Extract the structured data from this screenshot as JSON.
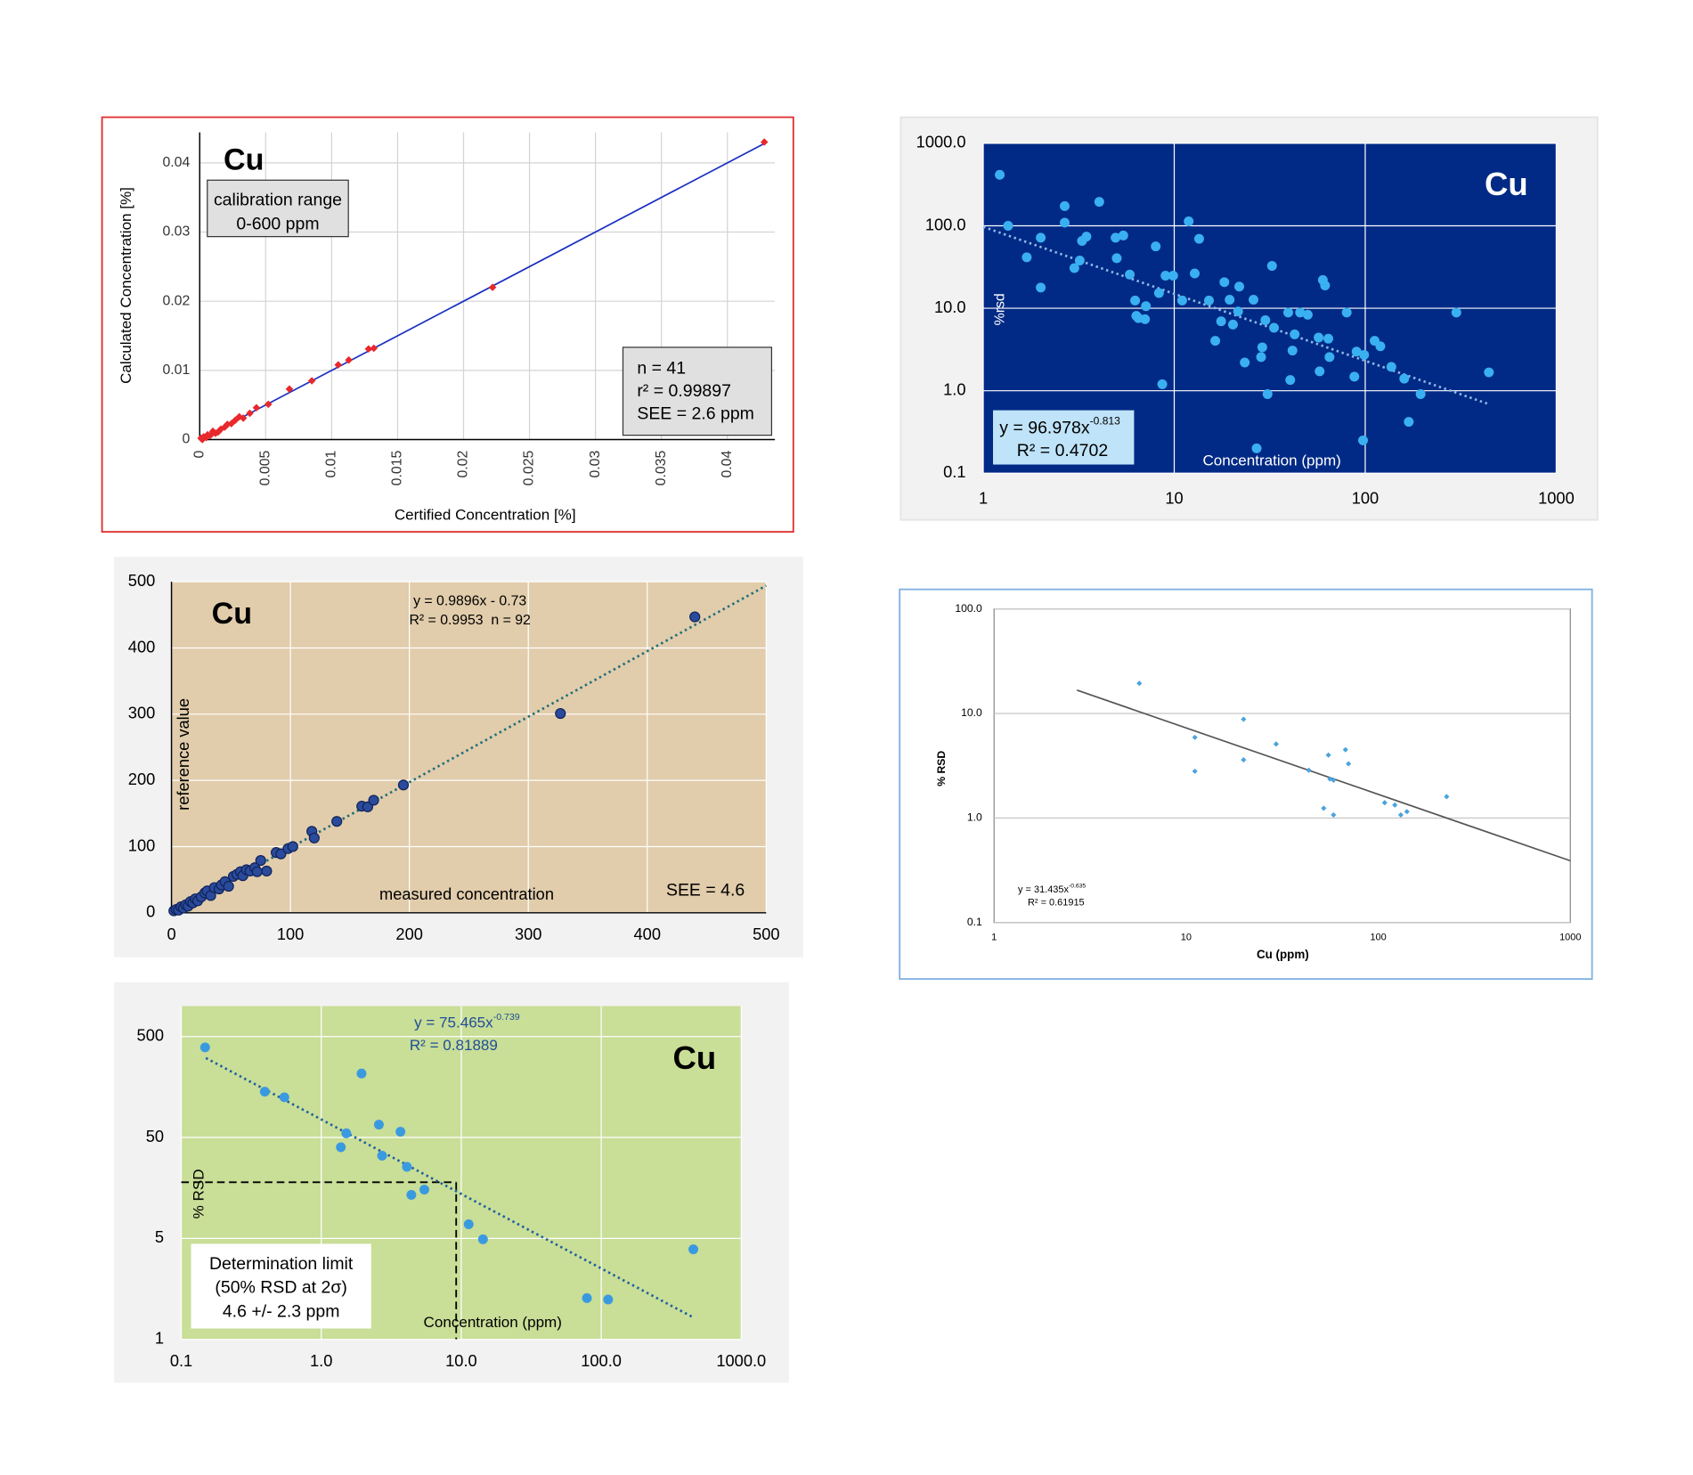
{
  "chart_data": [
    {
      "type": "scatter",
      "title": "Cu",
      "range_box": [
        "calibration range",
        "0-600 ppm"
      ],
      "stats_box": [
        "n = 41",
        "r² = 0.99897",
        "SEE = 2.6 ppm"
      ],
      "xlabel": "Certified Concentration [%]",
      "ylabel": "Calculated Concentration [%]",
      "xlim": [
        0,
        0.0436
      ],
      "ylim": [
        0,
        0.0444
      ],
      "xticks": [
        0,
        0.005,
        0.01,
        0.015,
        0.02,
        0.025,
        0.03,
        0.035,
        0.04
      ],
      "yticks": [
        0,
        0.01,
        0.02,
        0.03,
        0.04
      ],
      "grid": "both",
      "background": "#ffffff",
      "series": [
        {
          "color": "#1a2fc0",
          "line": "solid",
          "x": [
            0,
            0.0428
          ],
          "y": [
            0,
            0.0428
          ]
        },
        {
          "color": "#e8282b",
          "marker": "diamond",
          "x": [
            0.0001,
            0.0002,
            0.0003,
            0.0005,
            0.0006,
            0.0008,
            0.001,
            0.0012,
            0.0014,
            0.0016,
            0.0019,
            0.0021,
            0.0024,
            0.0027,
            0.003,
            0.0033,
            0.0038,
            0.0043,
            0.0052,
            0.0068,
            0.0085,
            0.0105,
            0.0113,
            0.0128,
            0.0132,
            0.0222,
            0.0428
          ],
          "y": [
            0.0002,
            0,
            0.0004,
            0.0003,
            0.0007,
            0.0006,
            0.0012,
            0.0009,
            0.0011,
            0.0015,
            0.0018,
            0.0022,
            0.0023,
            0.0028,
            0.0033,
            0.0031,
            0.0038,
            0.0046,
            0.0051,
            0.0073,
            0.0085,
            0.0108,
            0.0115,
            0.0131,
            0.0132,
            0.022,
            0.043
          ]
        }
      ]
    },
    {
      "type": "scatter",
      "title": "Cu",
      "xlabel": "Concentration (ppm)",
      "ylabel": "%rsd",
      "equation": {
        "text": "y = 96.978x",
        "exponent": "-0.813"
      },
      "r2": "R² = 0.4702",
      "xscale": "log",
      "yscale": "log",
      "xlim": [
        1,
        1000
      ],
      "ylim": [
        0.1,
        1000
      ],
      "xticks": [
        1,
        10,
        100,
        1000
      ],
      "yticks": [
        0.1,
        {
          "value": 1,
          "label": "1.0"
        },
        {
          "value": 10,
          "label": "10.0"
        },
        {
          "value": 100,
          "label": "100.0"
        },
        {
          "value": 1000,
          "label": "1000.0"
        }
      ],
      "grid": "both",
      "background": "#002a85",
      "series": [
        {
          "color": "#8fb8ea",
          "line": "dotted",
          "x": [
            1,
            450
          ],
          "y": [
            97,
            0.68
          ]
        },
        {
          "color": "#3ab0f0",
          "marker": "circle",
          "x": [
            1.22,
            1.35,
            1.69,
            2.0,
            2.0,
            2.67,
            2.67,
            3.0,
            3.2,
            3.29,
            3.47,
            4.05,
            4.93,
            5.0,
            5.41,
            5.85,
            6.24,
            6.33,
            6.49,
            7.03,
            7.11,
            8.0,
            8.32,
            8.66,
            9.0,
            9.87,
            11.9,
            11.0,
            12.8,
            13.5,
            15.2,
            16.4,
            17.6,
            18.3,
            19.5,
            20.3,
            21.6,
            21.9,
            23.4,
            26.0,
            28.5,
            28.9,
            30.0,
            30.8,
            32.5,
            33.3,
            39.5,
            40.5,
            41.6,
            42.7,
            45.6,
            50.0,
            57.0,
            57.7,
            60.0,
            61.6,
            64.1,
            65.0,
            80.0,
            87.7,
            90.1,
            98.7,
            112,
            120,
            137,
            160,
            169,
            195,
            300,
            444,
            27.0,
            97.4
          ],
          "y": [
            415,
            100,
            41.5,
            17.8,
            71.6,
            173,
            109,
            30.7,
            37.9,
            65.5,
            73.9,
            195,
            71.6,
            40.4,
            76.2,
            25.6,
            12.4,
            8.09,
            7.6,
            7.37,
            10.6,
            56.2,
            15.3,
            1.2,
            24.8,
            24.8,
            113,
            12.4,
            26.4,
            69.5,
            12.4,
            4.03,
            6.95,
            20.7,
            12.7,
            6.35,
            9.14,
            18.3,
            2.2,
            12.7,
            2.56,
            3.36,
            7.17,
            0.91,
            32.6,
            5.8,
            8.86,
            1.35,
            3.07,
            4.83,
            8.86,
            8.34,
            4.41,
            1.72,
            22.0,
            18.9,
            4.28,
            2.56,
            8.86,
            1.48,
            2.98,
            2.72,
            4.03,
            3.46,
            1.95,
            1.4,
            0.42,
            0.91,
            8.86,
            1.67,
            0.2,
            0.25
          ]
        }
      ]
    },
    {
      "type": "scatter",
      "title": "Cu",
      "equation": "y = 0.9896x - 0.73",
      "r2": "R² = 0.9953  n = 92",
      "xlabel": "measured concentration",
      "ylabel": "reference value",
      "see": "SEE = 4.6",
      "xlim": [
        0,
        500
      ],
      "ylim": [
        0,
        500
      ],
      "xticks": [
        0,
        100,
        200,
        300,
        400,
        500
      ],
      "yticks": [
        0,
        100,
        200,
        300,
        400,
        500
      ],
      "grid": "both",
      "background": "#e1ccab",
      "series": [
        {
          "color": "#1f6e7a",
          "line": "dotted",
          "x": [
            0,
            500
          ],
          "y": [
            -0.73,
            494.07
          ]
        },
        {
          "color": "#2a4b9b",
          "marker": "circle",
          "x": [
            2,
            4,
            6,
            8,
            10,
            12,
            14,
            16,
            18,
            20,
            22,
            25,
            28,
            30,
            33,
            36,
            40,
            42,
            45,
            48,
            52,
            55,
            58,
            60,
            63,
            66,
            70,
            72,
            75,
            80,
            88,
            92,
            98,
            102,
            118,
            120,
            139,
            160,
            165,
            170,
            195,
            327,
            440
          ],
          "y": [
            3,
            5,
            4,
            9,
            7,
            12,
            10,
            17,
            15,
            21,
            18,
            24,
            30,
            33,
            26,
            38,
            36,
            42,
            47,
            40,
            55,
            58,
            62,
            56,
            65,
            63,
            68,
            62,
            79,
            63,
            91,
            89,
            97,
            100,
            123,
            113,
            138,
            161,
            160,
            170,
            193,
            301,
            447
          ]
        }
      ]
    },
    {
      "type": "scatter",
      "xlabel": "Cu (ppm)",
      "ylabel": "% RSD",
      "equation": {
        "text": "y = 31.435x",
        "exponent": "-0.635"
      },
      "r2": "R² = 0.61915",
      "xscale": "log",
      "yscale": "log",
      "xlim": [
        1,
        1000
      ],
      "ylim": [
        0.1,
        100
      ],
      "xticks": [
        1,
        10,
        100,
        1000
      ],
      "yticks": [
        0.1,
        {
          "value": 1,
          "label": "1.0"
        },
        {
          "value": 10,
          "label": "10.0"
        },
        {
          "value": 100,
          "label": "100.0"
        }
      ],
      "grid": "y",
      "background": "#ffffff",
      "series": [
        {
          "color": "#555555",
          "line": "solid",
          "x": [
            2.7,
            1000
          ],
          "y": [
            16.7,
            0.39
          ]
        },
        {
          "color": "#4aa3dc",
          "marker": "diamond",
          "x": [
            5.7,
            11.1,
            11.1,
            19.9,
            19.9,
            29.4,
            43.5,
            52,
            55,
            56,
            58.5,
            58.5,
            67.5,
            70,
            108,
            122,
            131,
            141,
            227
          ],
          "y": [
            19.4,
            5.9,
            2.8,
            8.8,
            3.6,
            5.1,
            2.86,
            1.24,
            4.0,
            2.36,
            2.3,
            1.07,
            4.5,
            3.3,
            1.4,
            1.33,
            1.07,
            1.15,
            1.6
          ]
        }
      ]
    },
    {
      "type": "scatter",
      "title": "Cu",
      "equation": {
        "text": "y = 75.465x",
        "exponent": "-0.739"
      },
      "r2": "R² = 0.81889",
      "xlabel": "Concentration (ppm)",
      "ylabel": "% RSD",
      "limit_box": [
        "Determination limit",
        "(50% RSD at 2σ)",
        "4.6 +/- 2.3 ppm"
      ],
      "limit": {
        "x": 9.2,
        "y": 18
      },
      "xscale": "log",
      "yscale": "log",
      "xlim": [
        0.1,
        1000
      ],
      "ylim": [
        0.5,
        1000
      ],
      "xticks": [
        0.1,
        {
          "value": 1,
          "label": "1.0"
        },
        {
          "value": 10,
          "label": "10.0"
        },
        {
          "value": 100,
          "label": "100.0"
        },
        {
          "value": 1000,
          "label": "1000.0"
        }
      ],
      "yticks": [
        {
          "value": 0.5,
          "label": "1"
        },
        5,
        50,
        500
      ],
      "grid": "both",
      "background": "#c9de97",
      "series": [
        {
          "color": "#1f5f9f",
          "line": "dotted",
          "x": [
            0.15,
            450
          ],
          "y": [
            306,
            0.83
          ]
        },
        {
          "color": "#3a9ae0",
          "marker": "circle",
          "x": [
            0.148,
            0.395,
            0.545,
            1.94,
            2.58,
            3.68,
            1.51,
            1.38,
            2.72,
            4.09,
            4.4,
            5.45,
            11.3,
            14.3,
            79,
            112,
            455
          ],
          "y": [
            390,
            142,
            125,
            215,
            67,
            57,
            55,
            40,
            33,
            25.6,
            13.5,
            15.2,
            6.9,
            4.9,
            1.28,
            1.24,
            3.9
          ]
        }
      ]
    }
  ]
}
